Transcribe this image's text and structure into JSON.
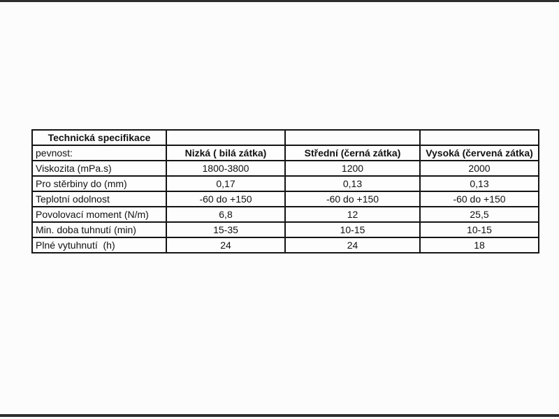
{
  "page": {
    "background": "#fcfcfc",
    "bar_color": "#2d2d2d",
    "border_color": "#141414"
  },
  "table": {
    "title": "Technická specifikace",
    "row_header_label": "pevnost:",
    "column_headers": {
      "low": "Nizká ( bilá zátka)",
      "medium": "Střední (černá zátka)",
      "high": "Vysoká (červená zátka)"
    },
    "rows": [
      {
        "cells": [
          "Technická specifikace",
          "",
          "",
          ""
        ]
      },
      {
        "cells": [
          "pevnost:",
          "Nizká ( bilá zátka)",
          "Střední (černá zátka)",
          "Vysoká (červená zátka)"
        ]
      },
      {
        "cells": [
          "Viskozita (mPa.s)",
          "1800-3800",
          "1200",
          "2000"
        ]
      },
      {
        "cells": [
          "Pro stěrbiny do (mm)",
          "0,17",
          "0,13",
          "0,13"
        ]
      },
      {
        "cells": [
          "Teplotní odolnost",
          "-60 do +150",
          "-60 do +150",
          "-60 do +150"
        ]
      },
      {
        "cells": [
          "Povolovací moment (N/m)",
          "6,8",
          "12",
          "25,5"
        ]
      },
      {
        "cells": [
          "Min. doba tuhnutí (min)",
          "15-35",
          "10-15",
          "10-15"
        ]
      },
      {
        "cells": [
          "Plné vytuhnutí  (h)",
          "24",
          "24",
          "18"
        ]
      }
    ]
  }
}
